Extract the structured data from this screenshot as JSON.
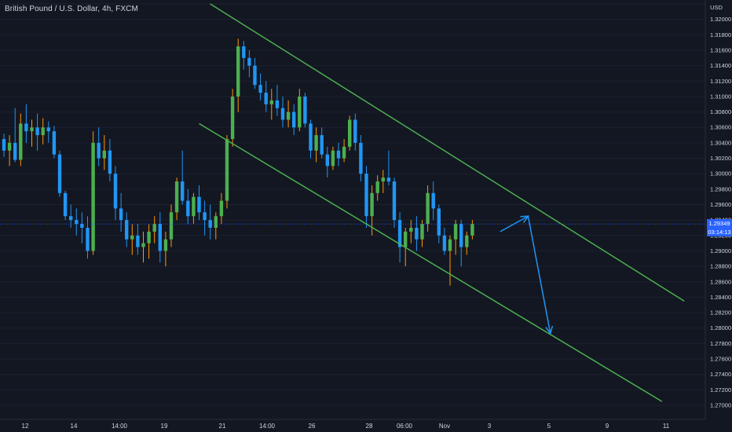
{
  "header": {
    "symbol_title": "British Pound / U.S. Dollar, 4h, FXCM"
  },
  "price_axis": {
    "unit": "USD",
    "ticks": [
      "1.32200",
      "1.32000",
      "1.31800",
      "1.31600",
      "1.31400",
      "1.31200",
      "1.31000",
      "1.30800",
      "1.30600",
      "1.30400",
      "1.30200",
      "1.30000",
      "1.29800",
      "1.29600",
      "1.29400",
      "1.29200",
      "1.29000",
      "1.28800",
      "1.28600",
      "1.28400",
      "1.28200",
      "1.28000",
      "1.27800",
      "1.27600",
      "1.27400",
      "1.27200",
      "1.27000"
    ],
    "current_price": "1.29349",
    "countdown": "03:14:13"
  },
  "time_axis": {
    "labels": [
      "12",
      "14",
      "14:00",
      "19",
      "21",
      "14:00",
      "26",
      "28",
      "06:00",
      "Nov",
      "3",
      "5",
      "9",
      "11"
    ]
  },
  "colors": {
    "background": "#131722",
    "up": "#4caf50",
    "down": "#2196f3",
    "wick_up": "#ff9800",
    "channel": "#4caf50",
    "arrow": "#2196f3",
    "price_line": "#2962ff",
    "axis_text": "#d1d4dc"
  },
  "chart_data": {
    "type": "candlestick",
    "title": "British Pound / U.S. Dollar, 4h, FXCM",
    "ylabel": "USD",
    "ylim": [
      1.269,
      1.3235
    ],
    "candles": [
      [
        1.3045,
        1.3052,
        1.3022,
        1.303
      ],
      [
        1.303,
        1.305,
        1.301,
        1.304
      ],
      [
        1.304,
        1.3085,
        1.3015,
        1.3018
      ],
      [
        1.3018,
        1.3078,
        1.301,
        1.3065
      ],
      [
        1.3065,
        1.309,
        1.304,
        1.3055
      ],
      [
        1.3055,
        1.307,
        1.3035,
        1.306
      ],
      [
        1.306,
        1.3078,
        1.303,
        1.305
      ],
      [
        1.305,
        1.3072,
        1.3038,
        1.306
      ],
      [
        1.306,
        1.3068,
        1.304,
        1.3055
      ],
      [
        1.3055,
        1.3062,
        1.302,
        1.3025
      ],
      [
        1.3025,
        1.303,
        1.297,
        1.2975
      ],
      [
        1.2975,
        1.2978,
        1.294,
        1.2945
      ],
      [
        1.2945,
        1.296,
        1.293,
        1.294
      ],
      [
        1.294,
        1.2955,
        1.292,
        1.2935
      ],
      [
        1.2935,
        1.295,
        1.291,
        1.293
      ],
      [
        1.293,
        1.2945,
        1.289,
        1.29
      ],
      [
        1.29,
        1.3055,
        1.2895,
        1.304
      ],
      [
        1.304,
        1.306,
        1.301,
        1.302
      ],
      [
        1.302,
        1.305,
        1.3005,
        1.303
      ],
      [
        1.303,
        1.3045,
        1.299,
        1.3
      ],
      [
        1.3,
        1.301,
        1.294,
        1.2955
      ],
      [
        1.2955,
        1.2975,
        1.2925,
        1.294
      ],
      [
        1.294,
        1.295,
        1.2905,
        1.2915
      ],
      [
        1.2915,
        1.2935,
        1.2895,
        1.292
      ],
      [
        1.292,
        1.2935,
        1.2895,
        1.2905
      ],
      [
        1.2905,
        1.2925,
        1.2885,
        1.291
      ],
      [
        1.291,
        1.2935,
        1.289,
        1.2925
      ],
      [
        1.2925,
        1.2945,
        1.291,
        1.2935
      ],
      [
        1.2935,
        1.295,
        1.2885,
        1.29
      ],
      [
        1.29,
        1.2925,
        1.288,
        1.2915
      ],
      [
        1.2915,
        1.296,
        1.2905,
        1.295
      ],
      [
        1.295,
        1.2995,
        1.294,
        1.299
      ],
      [
        1.299,
        1.303,
        1.296,
        1.2965
      ],
      [
        1.2965,
        1.298,
        1.2935,
        1.2945
      ],
      [
        1.2945,
        1.2975,
        1.2935,
        1.297
      ],
      [
        1.297,
        1.2985,
        1.294,
        1.295
      ],
      [
        1.295,
        1.2965,
        1.292,
        1.294
      ],
      [
        1.294,
        1.296,
        1.2915,
        1.293
      ],
      [
        1.293,
        1.295,
        1.2915,
        1.2945
      ],
      [
        1.2945,
        1.2975,
        1.2935,
        1.2965
      ],
      [
        1.2965,
        1.305,
        1.2955,
        1.3045
      ],
      [
        1.3045,
        1.311,
        1.3035,
        1.31
      ],
      [
        1.31,
        1.3175,
        1.308,
        1.3165
      ],
      [
        1.3165,
        1.3172,
        1.3135,
        1.315
      ],
      [
        1.315,
        1.316,
        1.3125,
        1.314
      ],
      [
        1.314,
        1.315,
        1.311,
        1.3115
      ],
      [
        1.3115,
        1.313,
        1.3095,
        1.3105
      ],
      [
        1.3105,
        1.312,
        1.308,
        1.309
      ],
      [
        1.309,
        1.311,
        1.307,
        1.3095
      ],
      [
        1.3095,
        1.3115,
        1.3075,
        1.3085
      ],
      [
        1.3085,
        1.31,
        1.306,
        1.307
      ],
      [
        1.307,
        1.3095,
        1.306,
        1.308
      ],
      [
        1.308,
        1.309,
        1.305,
        1.306
      ],
      [
        1.306,
        1.311,
        1.3055,
        1.31
      ],
      [
        1.31,
        1.3105,
        1.306,
        1.3065
      ],
      [
        1.3065,
        1.307,
        1.302,
        1.303
      ],
      [
        1.303,
        1.306,
        1.3015,
        1.305
      ],
      [
        1.305,
        1.306,
        1.302,
        1.3025
      ],
      [
        1.3025,
        1.3035,
        1.2995,
        1.301
      ],
      [
        1.301,
        1.3035,
        1.3005,
        1.303
      ],
      [
        1.303,
        1.304,
        1.301,
        1.302
      ],
      [
        1.302,
        1.3045,
        1.3015,
        1.3035
      ],
      [
        1.3035,
        1.3075,
        1.303,
        1.307
      ],
      [
        1.307,
        1.3078,
        1.303,
        1.304
      ],
      [
        1.304,
        1.305,
        1.299,
        1.3
      ],
      [
        1.3,
        1.301,
        1.293,
        1.2945
      ],
      [
        1.2945,
        1.2985,
        1.292,
        1.2975
      ],
      [
        1.2975,
        1.2998,
        1.2965,
        1.299
      ],
      [
        1.299,
        1.3005,
        1.2975,
        1.2995
      ],
      [
        1.2995,
        1.303,
        1.2985,
        1.299
      ],
      [
        1.299,
        1.2995,
        1.293,
        1.294
      ],
      [
        1.294,
        1.295,
        1.2885,
        1.2905
      ],
      [
        1.2905,
        1.293,
        1.288,
        1.2925
      ],
      [
        1.2925,
        1.294,
        1.291,
        1.293
      ],
      [
        1.293,
        1.2945,
        1.29,
        1.2915
      ],
      [
        1.2915,
        1.294,
        1.2905,
        1.2935
      ],
      [
        1.2935,
        1.2985,
        1.2925,
        1.2975
      ],
      [
        1.2975,
        1.299,
        1.294,
        1.2955
      ],
      [
        1.2955,
        1.296,
        1.291,
        1.292
      ],
      [
        1.292,
        1.293,
        1.2895,
        1.29
      ],
      [
        1.29,
        1.292,
        1.2855,
        1.2915
      ],
      [
        1.2915,
        1.294,
        1.2895,
        1.2935
      ],
      [
        1.2935,
        1.294,
        1.288,
        1.2905
      ],
      [
        1.2905,
        1.2925,
        1.2895,
        1.292
      ],
      [
        1.292,
        1.294,
        1.2915,
        1.2935
      ]
    ],
    "channel_lines": [
      {
        "name": "upper",
        "from": {
          "bar": 37,
          "price": 1.322
        },
        "to": {
          "bar": 122,
          "price": 1.2835
        }
      },
      {
        "name": "lower",
        "from": {
          "bar": 35,
          "price": 1.3065
        },
        "to": {
          "bar": 118,
          "price": 1.2705
        }
      }
    ],
    "projection_arrows": [
      {
        "from": {
          "bar": 89,
          "price": 1.2925
        },
        "to": {
          "bar": 94,
          "price": 1.2945
        }
      },
      {
        "from": {
          "bar": 94,
          "price": 1.2945
        },
        "to": {
          "bar": 98,
          "price": 1.2793
        }
      }
    ]
  }
}
